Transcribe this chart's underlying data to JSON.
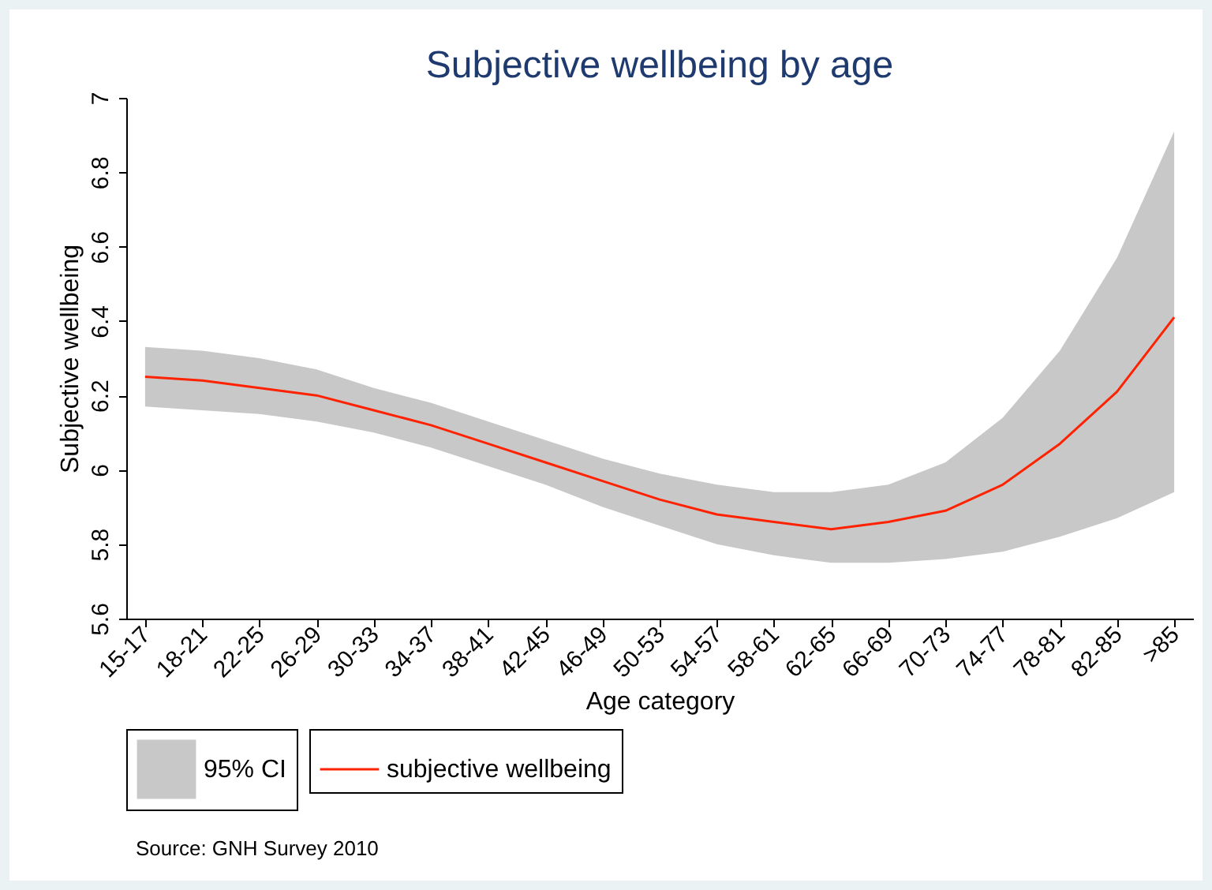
{
  "chart_data": {
    "type": "line",
    "title": "Subjective wellbeing by age",
    "xlabel": "Age category",
    "ylabel": "Subjective wellbeing",
    "categories": [
      "15-17",
      "18-21",
      "22-25",
      "26-29",
      "30-33",
      "34-37",
      "38-41",
      "42-45",
      "46-49",
      "50-53",
      "54-57",
      "58-61",
      "62-65",
      "66-69",
      "70-73",
      "74-77",
      "78-81",
      "82-85",
      ">85"
    ],
    "series": [
      {
        "name": "subjective wellbeing",
        "color": "#ff2200",
        "values": [
          6.25,
          6.24,
          6.22,
          6.2,
          6.16,
          6.12,
          6.07,
          6.02,
          5.97,
          5.92,
          5.88,
          5.86,
          5.84,
          5.86,
          5.89,
          5.96,
          6.07,
          6.21,
          6.41
        ],
        "lower": [
          6.17,
          6.16,
          6.15,
          6.13,
          6.1,
          6.06,
          6.01,
          5.96,
          5.9,
          5.85,
          5.8,
          5.77,
          5.75,
          5.75,
          5.76,
          5.78,
          5.82,
          5.87,
          5.94
        ],
        "upper": [
          6.33,
          6.32,
          6.3,
          6.27,
          6.22,
          6.18,
          6.13,
          6.08,
          6.03,
          5.99,
          5.96,
          5.94,
          5.94,
          5.96,
          6.02,
          6.14,
          6.32,
          6.57,
          6.91
        ]
      }
    ],
    "ylim": [
      5.6,
      7
    ],
    "yticks": [
      5.6,
      5.8,
      6,
      6.2,
      6.4,
      6.6,
      6.8,
      7
    ],
    "grid": false,
    "legend": "bottom",
    "annotations": [
      "95% CI",
      "Source: GNH Survey 2010"
    ]
  }
}
